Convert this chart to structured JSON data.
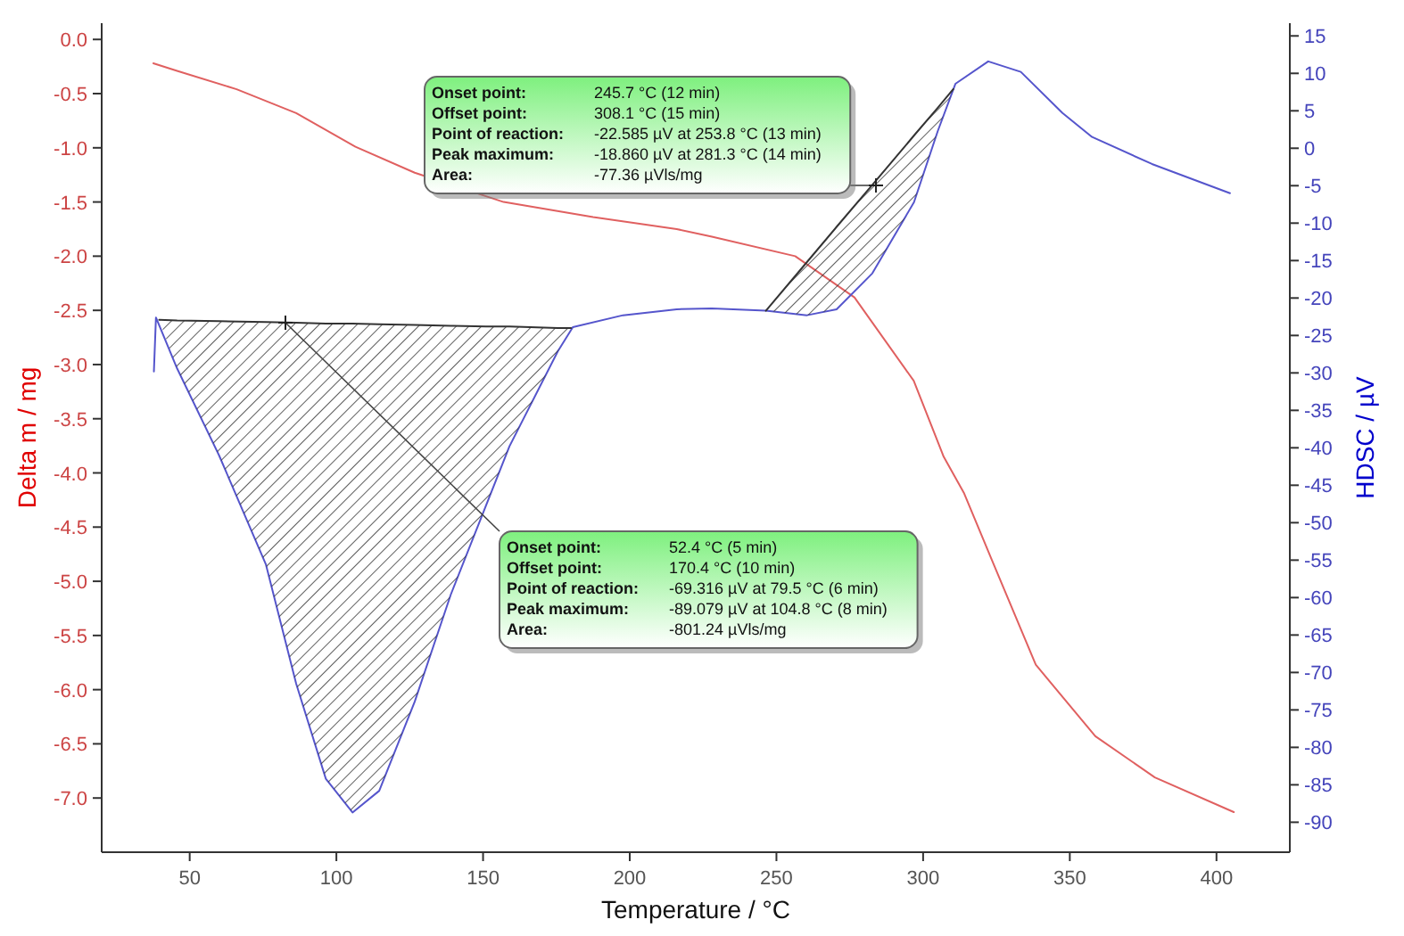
{
  "chart_data": {
    "type": "line",
    "xlabel": "Temperature / °C",
    "ylabel": "Delta m / mg",
    "y2label": "HDSC / µV",
    "xlim": [
      20,
      425
    ],
    "xticks": [
      50,
      100,
      150,
      200,
      250,
      300,
      350,
      400
    ],
    "ylim": [
      -7.5,
      0.15
    ],
    "yticks": [
      {
        "value": 0,
        "label": "0.0"
      },
      {
        "value": -0.5,
        "label": "-0.5"
      },
      {
        "value": -1,
        "label": "-1.0"
      },
      {
        "value": -1.5,
        "label": "-1.5"
      },
      {
        "value": -2,
        "label": "-2.0"
      },
      {
        "value": -2.5,
        "label": "-2.5"
      },
      {
        "value": -3,
        "label": "-3.0"
      },
      {
        "value": -3.5,
        "label": "-3.5"
      },
      {
        "value": -4,
        "label": "-4.0"
      },
      {
        "value": -4.5,
        "label": "-4.5"
      },
      {
        "value": -5,
        "label": "-5.0"
      },
      {
        "value": -5.5,
        "label": "-5.5"
      },
      {
        "value": -6,
        "label": "-6.0"
      },
      {
        "value": -6.5,
        "label": "-6.5"
      },
      {
        "value": -7,
        "label": "-7.0"
      }
    ],
    "y2lim": [
      -94,
      16.7
    ],
    "y2ticks": [
      15,
      10,
      5,
      0,
      -5,
      -10,
      -15,
      -20,
      -25,
      -30,
      -35,
      -40,
      -45,
      -50,
      -55,
      -60,
      -65,
      -70,
      -75,
      -80,
      -85,
      -90
    ],
    "grid": false,
    "line_style": "solid",
    "series": [
      {
        "color": "#e06060",
        "x": [
          37.6,
          45.7,
          66,
          86.3,
          106.5,
          126.7,
          157,
          187.5,
          216,
          228,
          256.4,
          276.6,
          296.8,
          307,
          314,
          324,
          338.4,
          358.7,
          379,
          405.9
        ],
        "values": [
          -0.22,
          -0.29,
          -0.46,
          -0.68,
          -0.99,
          -1.23,
          -1.5,
          -1.64,
          -1.75,
          -1.82,
          -2.0,
          -2.38,
          -3.15,
          -3.85,
          -4.19,
          -4.84,
          -5.77,
          -6.43,
          -6.81,
          -7.13
        ]
      },
      {
        "axis": "y2",
        "color": "#5555cc",
        "x": [
          37.8,
          38.5,
          45.7,
          60,
          76,
          86.3,
          96.4,
          105.5,
          114.6,
          126.7,
          139,
          151,
          159,
          175.5,
          180.6,
          197.7,
          216,
          228,
          246.4,
          260.4,
          270.5,
          282.7,
          296.9,
          305,
          311,
          322.2,
          333.3,
          347.5,
          357.6,
          378,
          404.6
        ],
        "values": [
          -29.8,
          -22.6,
          -29.4,
          -41,
          -55.6,
          -71.5,
          -84.2,
          -88.7,
          -85.8,
          -73.9,
          -59.6,
          -47.7,
          -39.8,
          -27.1,
          -23.9,
          -22.3,
          -21.5,
          -21.4,
          -21.7,
          -22.3,
          -21.5,
          -16.7,
          -7.2,
          2.3,
          8.6,
          11.6,
          10.2,
          4.7,
          1.5,
          -2.1,
          -6.0
        ]
      },
      {
        "axis": "y2",
        "color": "#333333",
        "x": [
          39.6,
          45.7,
          60,
          76,
          86.3,
          96.4,
          105.5,
          114.6,
          126.7,
          139,
          151,
          159,
          175.5,
          180
        ],
        "values": [
          -22.9,
          -23.0,
          -23.1,
          -23.2,
          -23.3,
          -23.4,
          -23.4,
          -23.5,
          -23.6,
          -23.7,
          -23.8,
          -23.8,
          -24.0,
          -24.0
        ],
        "lower": [
          -22.9,
          -29.4,
          -41,
          -55.6,
          -71.5,
          -84.2,
          -88.7,
          -85.8,
          -73.9,
          -59.6,
          -47.7,
          -39.8,
          -27.1,
          -24.0
        ],
        "upper": [
          -22.9,
          -23.0,
          -23.1,
          -23.2,
          -23.3,
          -23.4,
          -23.4,
          -23.5,
          -23.6,
          -23.7,
          -23.8,
          -23.8,
          -24.0,
          -24.0
        ]
      },
      {
        "axis": "y2",
        "color": "#333333",
        "x": [
          246.4,
          260.4,
          270.5,
          282.7,
          296.9,
          305,
          310.3
        ],
        "values": [
          -21.7,
          -15.2,
          -10.5,
          -4.9,
          1.7,
          5.4,
          7.9
        ],
        "lower": [
          -21.7,
          -22.3,
          -21.5,
          -16.7,
          -7.2,
          2.3,
          7.9
        ],
        "upper": [
          -21.7,
          -15.2,
          -10.5,
          -4.9,
          1.7,
          5.4,
          7.9
        ]
      }
    ],
    "annotations": [
      "Onset point: 245.7 °C (12 min)",
      "Offset point: 308.1 °C (15 min)",
      "Point of reaction: -22.585 µV at 253.8 °C (13 min)",
      "Peak maximum: -18.860 µV at 281.3 °C (14 min)",
      "Area: -77.36 µVls/mg",
      "Onset point: 52.4 °C (5 min)",
      "Offset point: 170.4 °C (10 min)",
      "Point of reaction: -69.316 µV at 79.5 °C (6 min)",
      "Peak maximum: -89.079 µV at 104.8 °C (8 min)",
      "Area: -801.24 µVls/mg"
    ]
  }
}
